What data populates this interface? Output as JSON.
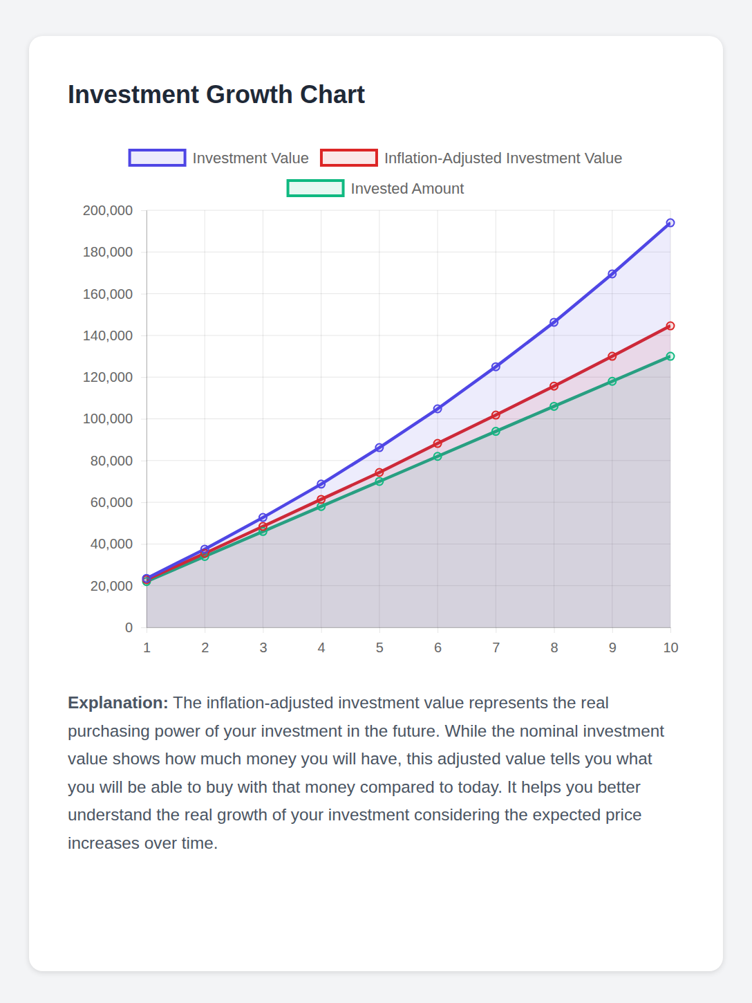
{
  "chart_data": {
    "type": "area",
    "title": "Investment Growth Chart",
    "x": [
      1,
      2,
      3,
      4,
      5,
      6,
      7,
      8,
      9,
      10
    ],
    "xlim": [
      1,
      10
    ],
    "xticks": [
      1,
      2,
      3,
      4,
      5,
      6,
      7,
      8,
      9,
      10
    ],
    "ylim": [
      0,
      200000
    ],
    "yticks": [
      0,
      {
        "value": 20000,
        "label": "20,000"
      },
      {
        "value": 40000,
        "label": "40,000"
      },
      {
        "value": 60000,
        "label": "60,000"
      },
      {
        "value": 80000,
        "label": "80,000"
      },
      {
        "value": 100000,
        "label": "100,000"
      },
      {
        "value": 120000,
        "label": "120,000"
      },
      {
        "value": 140000,
        "label": "140,000"
      },
      {
        "value": 160000,
        "label": "160,000"
      },
      {
        "value": 180000,
        "label": "180,000"
      },
      {
        "value": 200000,
        "label": "200,000"
      }
    ],
    "grid": true,
    "legend": "top",
    "marker": "circle",
    "series": [
      {
        "name": "Investment Value",
        "color": "#4f46e5",
        "values": [
          23500,
          37500,
          52700,
          68700,
          86200,
          104800,
          125000,
          146300,
          169500,
          194000
        ]
      },
      {
        "name": "Inflation-Adjusted Investment Value",
        "color": "#dc2626",
        "values": [
          22900,
          35500,
          48400,
          61400,
          74300,
          88200,
          101800,
          115700,
          130000,
          144600
        ]
      },
      {
        "name": "Invested Amount",
        "color": "#10b981",
        "values": [
          22000,
          34000,
          46000,
          58000,
          70000,
          82000,
          94000,
          106000,
          118000,
          130000
        ]
      }
    ],
    "annotations": [
      {
        "label": "Explanation:",
        "text": "The inflation-adjusted investment value represents the real purchasing power of your investment in the future. While the nominal investment value shows how much money you will have, this adjusted value tells you what you will be able to buy with that money compared to today. It helps you better understand the real growth of your investment considering the expected price increases over time."
      }
    ]
  }
}
